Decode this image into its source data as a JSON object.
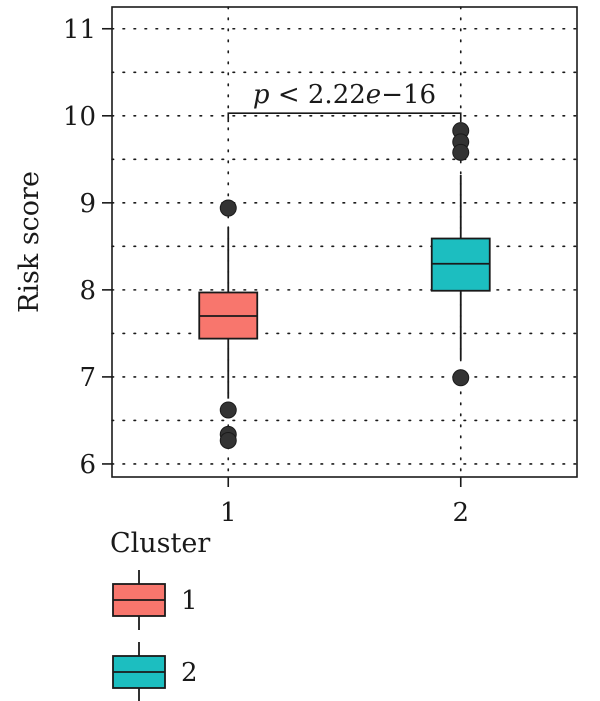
{
  "chart_data": {
    "type": "boxplot",
    "ylabel": "Risk score",
    "xlabel": "",
    "ylim": [
      5.85,
      11.25
    ],
    "xlim": [
      0.5,
      2.5
    ],
    "yticks": [
      6,
      7,
      8,
      9,
      10,
      11
    ],
    "minor_yticks": [
      6.5,
      7.5,
      8.5,
      9.5,
      10.5
    ],
    "grid": true,
    "categories": [
      "1",
      "2"
    ],
    "boxes": [
      {
        "category": "1",
        "color": "#F8766D",
        "whisker_low": 6.75,
        "q1": 7.44,
        "median": 7.7,
        "q3": 7.97,
        "whisker_high": 8.72,
        "outliers": [
          8.94,
          6.62,
          6.34,
          6.27
        ]
      },
      {
        "category": "2",
        "color": "#1CBEC0",
        "whisker_low": 7.2,
        "q1": 7.99,
        "median": 8.3,
        "q3": 8.59,
        "whisker_high": 9.32,
        "outliers": [
          9.83,
          9.7,
          9.58,
          6.99
        ]
      }
    ],
    "annotation": {
      "text": "p < 2.22e−16",
      "p_italic": "p",
      "rest": " < 2.22",
      "e_italic": "e",
      "exp": "−16",
      "y": 10.03
    },
    "legend": {
      "title": "Cluster",
      "placement": "bottom",
      "entries": [
        {
          "label": "1",
          "color": "#F8766D"
        },
        {
          "label": "2",
          "color": "#1CBEC0"
        }
      ]
    }
  }
}
